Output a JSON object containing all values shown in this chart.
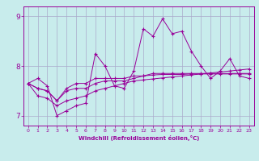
{
  "xlabel": "Windchill (Refroidissement éolien,°C)",
  "bg_color": "#c8ecec",
  "line_color": "#990099",
  "grid_color": "#aaaacc",
  "xlim": [
    -0.5,
    23.5
  ],
  "ylim": [
    6.8,
    9.2
  ],
  "yticks": [
    7,
    8,
    9
  ],
  "xticks": [
    0,
    1,
    2,
    3,
    4,
    5,
    6,
    7,
    8,
    9,
    10,
    11,
    12,
    13,
    14,
    15,
    16,
    17,
    18,
    19,
    20,
    21,
    22,
    23
  ],
  "series": [
    [
      7.65,
      7.75,
      7.6,
      7.0,
      7.1,
      7.2,
      7.25,
      8.25,
      8.0,
      7.6,
      7.55,
      7.9,
      8.75,
      8.6,
      8.95,
      8.65,
      8.7,
      8.3,
      8.0,
      7.75,
      7.9,
      8.15,
      7.8,
      7.75
    ],
    [
      7.65,
      7.55,
      7.5,
      7.3,
      7.55,
      7.65,
      7.65,
      7.75,
      7.75,
      7.75,
      7.75,
      7.8,
      7.8,
      7.85,
      7.85,
      7.85,
      7.85,
      7.85,
      7.85,
      7.85,
      7.85,
      7.85,
      7.85,
      7.85
    ],
    [
      7.65,
      7.55,
      7.5,
      7.3,
      7.5,
      7.55,
      7.55,
      7.65,
      7.7,
      7.7,
      7.7,
      7.75,
      7.8,
      7.82,
      7.83,
      7.83,
      7.83,
      7.84,
      7.84,
      7.84,
      7.84,
      7.84,
      7.84,
      7.84
    ],
    [
      7.65,
      7.4,
      7.35,
      7.2,
      7.3,
      7.35,
      7.4,
      7.5,
      7.55,
      7.6,
      7.65,
      7.7,
      7.72,
      7.74,
      7.76,
      7.78,
      7.8,
      7.82,
      7.84,
      7.86,
      7.88,
      7.9,
      7.92,
      7.94
    ]
  ],
  "figsize": [
    3.2,
    2.0
  ],
  "dpi": 100
}
